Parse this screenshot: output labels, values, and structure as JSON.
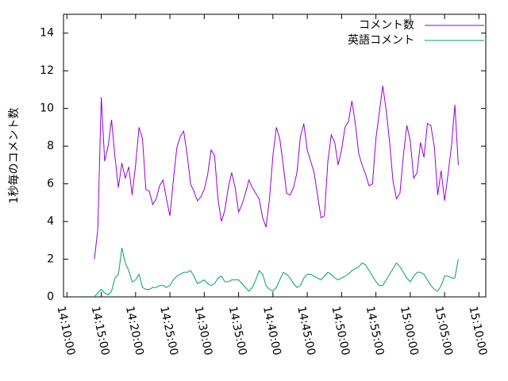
{
  "chart_data": {
    "type": "line",
    "y_label": "1秒毎のコメント数",
    "x": [
      "14:14:00",
      "14:14:30",
      "14:15:00",
      "14:15:30",
      "14:16:00",
      "14:16:30",
      "14:17:00",
      "14:17:30",
      "14:18:00",
      "14:18:30",
      "14:19:00",
      "14:19:30",
      "14:20:00",
      "14:20:30",
      "14:21:00",
      "14:21:30",
      "14:22:00",
      "14:22:30",
      "14:23:00",
      "14:23:30",
      "14:24:00",
      "14:24:30",
      "14:25:00",
      "14:25:30",
      "14:26:00",
      "14:26:30",
      "14:27:00",
      "14:27:30",
      "14:28:00",
      "14:28:30",
      "14:29:00",
      "14:29:30",
      "14:30:00",
      "14:30:30",
      "14:31:00",
      "14:31:30",
      "14:32:00",
      "14:32:30",
      "14:33:00",
      "14:33:30",
      "14:34:00",
      "14:34:30",
      "14:35:00",
      "14:35:30",
      "14:36:00",
      "14:36:30",
      "14:37:00",
      "14:37:30",
      "14:38:00",
      "14:38:30",
      "14:39:00",
      "14:39:30",
      "14:40:00",
      "14:40:30",
      "14:41:00",
      "14:41:30",
      "14:42:00",
      "14:42:30",
      "14:43:00",
      "14:43:30",
      "14:44:00",
      "14:44:30",
      "14:45:00",
      "14:45:30",
      "14:46:00",
      "14:46:30",
      "14:47:00",
      "14:47:30",
      "14:48:00",
      "14:48:30",
      "14:49:00",
      "14:49:30",
      "14:50:00",
      "14:50:30",
      "14:51:00",
      "14:51:30",
      "14:52:00",
      "14:52:30",
      "14:53:00",
      "14:53:30",
      "14:54:00",
      "14:54:30",
      "14:55:00",
      "14:55:30",
      "14:56:00",
      "14:56:30",
      "14:57:00",
      "14:57:30",
      "14:58:00",
      "14:58:30",
      "14:59:00",
      "14:59:30",
      "15:00:00",
      "15:00:30",
      "15:01:00",
      "15:01:30",
      "15:02:00",
      "15:02:30",
      "15:03:00",
      "15:03:30",
      "15:04:00",
      "15:04:30",
      "15:05:00",
      "15:05:30",
      "15:06:00",
      "15:06:30",
      "15:07:00"
    ],
    "series": [
      {
        "name": "コメント数",
        "color": "#9400d3",
        "values": [
          2.0,
          3.6,
          10.6,
          7.2,
          8.0,
          9.4,
          7.4,
          5.8,
          7.1,
          6.3,
          6.9,
          5.4,
          7.0,
          9.0,
          8.4,
          5.7,
          5.6,
          4.9,
          5.2,
          5.9,
          6.2,
          5.2,
          4.3,
          6.2,
          7.9,
          8.5,
          8.8,
          7.6,
          6.0,
          5.6,
          5.1,
          5.3,
          5.7,
          6.5,
          7.8,
          7.5,
          5.2,
          4.0,
          4.6,
          5.8,
          6.6,
          5.8,
          4.5,
          4.9,
          5.5,
          6.2,
          5.8,
          5.5,
          5.2,
          4.2,
          3.7,
          5.2,
          7.5,
          9.0,
          8.4,
          7.0,
          5.5,
          5.4,
          5.8,
          6.6,
          8.5,
          9.2,
          7.8,
          7.2,
          6.6,
          5.4,
          4.2,
          4.3,
          7.2,
          8.6,
          8.2,
          7.0,
          7.8,
          9.0,
          9.3,
          10.4,
          9.2,
          7.6,
          7.0,
          6.5,
          5.9,
          6.0,
          8.4,
          9.8,
          11.2,
          9.9,
          8.2,
          6.1,
          5.2,
          5.5,
          7.5,
          9.1,
          8.3,
          6.3,
          6.6,
          8.2,
          7.4,
          9.2,
          9.1,
          8.0,
          5.4,
          6.7,
          5.1,
          6.5,
          8.0,
          10.2,
          7.0
        ]
      },
      {
        "name": "英語コメント",
        "color": "#009e73",
        "values": [
          0.0,
          0.2,
          0.4,
          0.2,
          0.1,
          0.3,
          1.0,
          1.2,
          2.6,
          1.8,
          1.4,
          0.8,
          0.9,
          1.2,
          0.5,
          0.4,
          0.4,
          0.5,
          0.5,
          0.6,
          0.6,
          0.5,
          0.6,
          0.9,
          1.1,
          1.2,
          1.3,
          1.3,
          1.4,
          1.1,
          0.7,
          0.8,
          0.9,
          0.7,
          0.6,
          0.7,
          1.0,
          1.1,
          0.8,
          0.8,
          0.9,
          0.9,
          0.9,
          0.7,
          0.5,
          0.3,
          0.5,
          0.9,
          1.4,
          1.2,
          0.6,
          0.4,
          0.3,
          0.5,
          0.9,
          1.3,
          1.2,
          1.0,
          0.7,
          0.5,
          0.6,
          1.0,
          1.2,
          1.2,
          1.1,
          1.0,
          0.9,
          1.1,
          1.3,
          1.2,
          1.0,
          0.9,
          1.0,
          1.1,
          1.2,
          1.4,
          1.5,
          1.6,
          1.8,
          1.7,
          1.4,
          1.1,
          0.8,
          0.6,
          0.6,
          0.9,
          1.2,
          1.5,
          1.8,
          1.6,
          1.3,
          1.0,
          0.8,
          1.1,
          1.3,
          1.3,
          1.2,
          0.9,
          0.6,
          0.4,
          0.3,
          0.6,
          1.1,
          1.1,
          1.0,
          1.0,
          2.0
        ]
      }
    ],
    "xlim": [
      "14:09:30",
      "15:11:00"
    ],
    "xticks": [
      "14:10:00",
      "14:15:00",
      "14:20:00",
      "14:25:00",
      "14:30:00",
      "14:35:00",
      "14:40:00",
      "14:45:00",
      "14:50:00",
      "14:55:00",
      "15:00:00",
      "15:05:00",
      "15:10:00"
    ],
    "ylim": [
      0,
      15
    ],
    "yticks": [
      0,
      2,
      4,
      6,
      8,
      10,
      12,
      14
    ],
    "legend": "top-right"
  }
}
